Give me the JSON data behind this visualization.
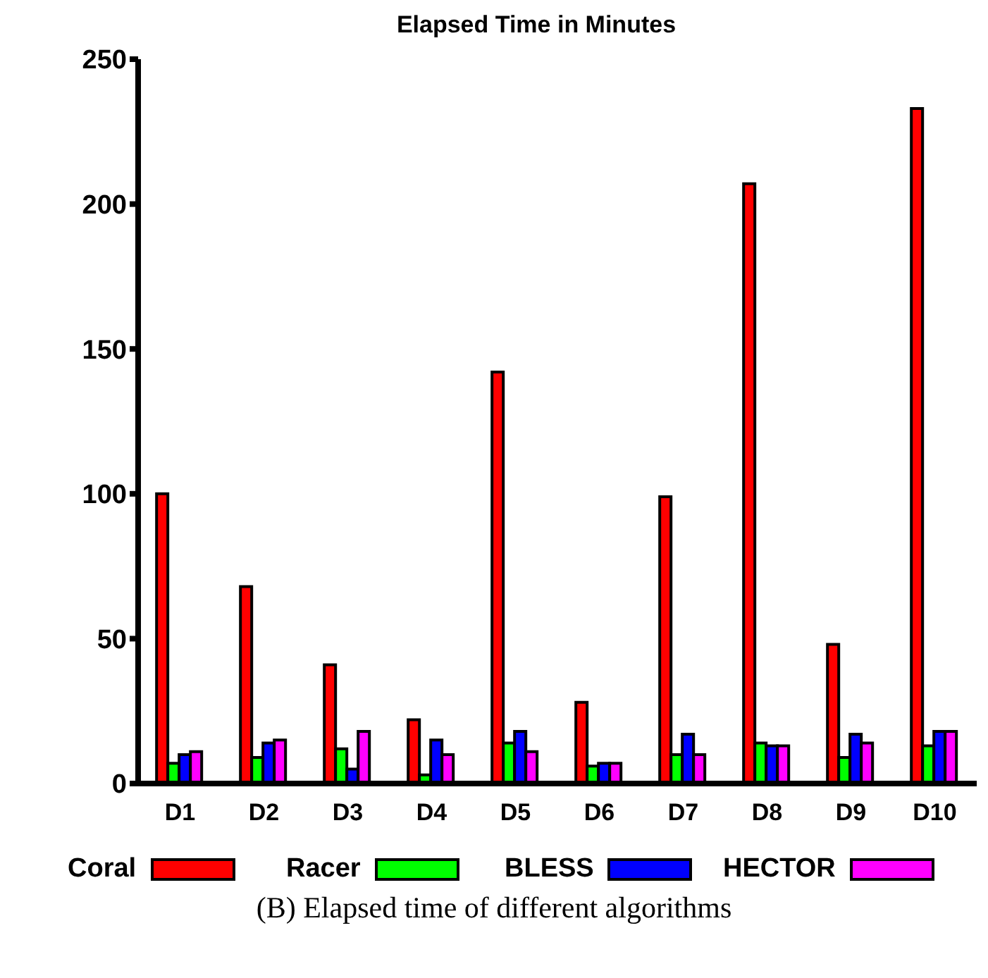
{
  "chart_data": {
    "type": "bar",
    "title": "Elapsed Time in Minutes",
    "categories": [
      "D1",
      "D2",
      "D3",
      "D4",
      "D5",
      "D6",
      "D7",
      "D8",
      "D9",
      "D10"
    ],
    "series": [
      {
        "name": "Coral",
        "color": "#ff0000",
        "values": [
          100,
          68,
          41,
          22,
          142,
          28,
          99,
          207,
          48,
          233
        ]
      },
      {
        "name": "Racer",
        "color": "#00ff00",
        "values": [
          7,
          9,
          12,
          3,
          14,
          6,
          10,
          14,
          9,
          13
        ]
      },
      {
        "name": "BLESS",
        "color": "#0000ff",
        "values": [
          10,
          14,
          5,
          15,
          18,
          7,
          17,
          13,
          17,
          18
        ]
      },
      {
        "name": "HECTOR",
        "color": "#ff00ff",
        "values": [
          11,
          15,
          18,
          10,
          11,
          7,
          10,
          13,
          14,
          18
        ]
      }
    ],
    "ylim": [
      0,
      250
    ],
    "yticks": [
      0,
      50,
      100,
      150,
      200,
      250
    ],
    "grid": false,
    "legend": "bottom",
    "annotations": [
      "(B) Elapsed time of different algorithms"
    ]
  }
}
